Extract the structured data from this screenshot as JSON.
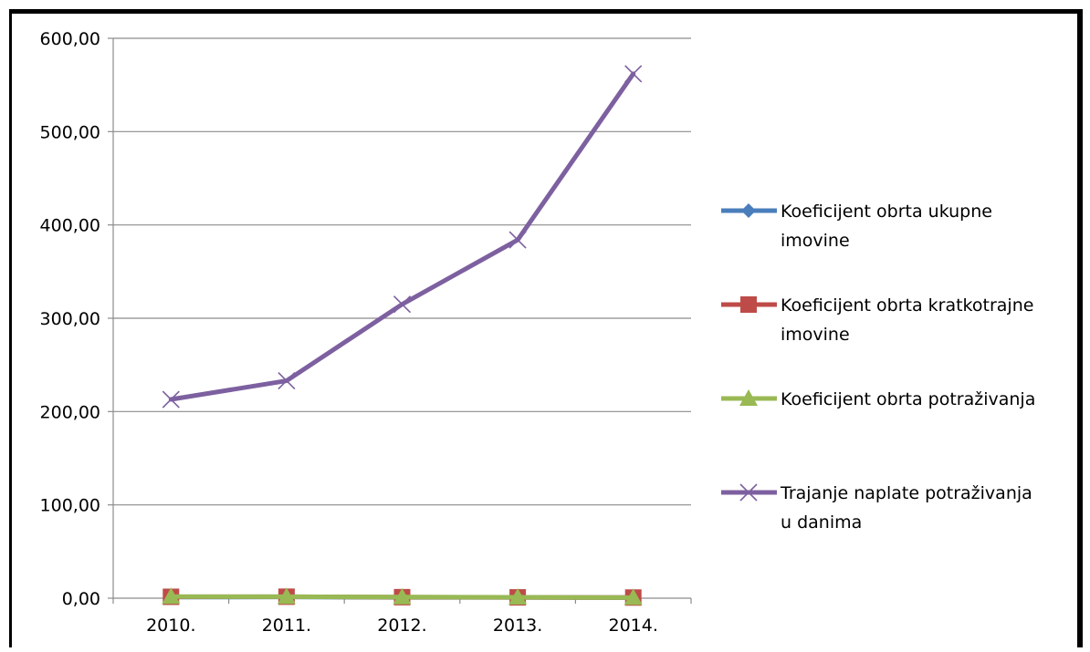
{
  "chart_data": {
    "type": "line",
    "categories": [
      "2010.",
      "2011.",
      "2012.",
      "2013.",
      "2014."
    ],
    "ylim": [
      0,
      600
    ],
    "yticks": [
      "0,00",
      "100,00",
      "200,00",
      "300,00",
      "400,00",
      "500,00",
      "600,00"
    ],
    "ytick_values": [
      0,
      100,
      200,
      300,
      400,
      500,
      600
    ],
    "grid": true,
    "legend_position": "right",
    "series": [
      {
        "name": "Koeficijent obrta ukupne imovine",
        "legend_lines": [
          "Koeficijent obrta ukupne",
          "imovine"
        ],
        "color": "#4a7ebb",
        "marker": "diamond",
        "values": [
          1.2,
          1.3,
          0.9,
          0.8,
          0.6
        ]
      },
      {
        "name": "Koeficijent obrta kratkotrajne imovine",
        "legend_lines": [
          "Koeficijent obrta kratkotrajne",
          "imovine"
        ],
        "color": "#be4b48",
        "marker": "square",
        "values": [
          1.5,
          1.6,
          1.1,
          0.9,
          0.7
        ]
      },
      {
        "name": "Koeficijent obrta potraživanja",
        "legend_lines": [
          "Koeficijent obrta potraživanja"
        ],
        "color": "#98b954",
        "marker": "triangle",
        "values": [
          1.7,
          1.6,
          1.2,
          0.95,
          0.65
        ]
      },
      {
        "name": "Trajanje naplate potraživanja u danima",
        "legend_lines": [
          "Trajanje naplate potraživanja",
          "u danima"
        ],
        "color": "#7d60a0",
        "marker": "x",
        "values": [
          213,
          233,
          315,
          384,
          562
        ]
      }
    ]
  }
}
